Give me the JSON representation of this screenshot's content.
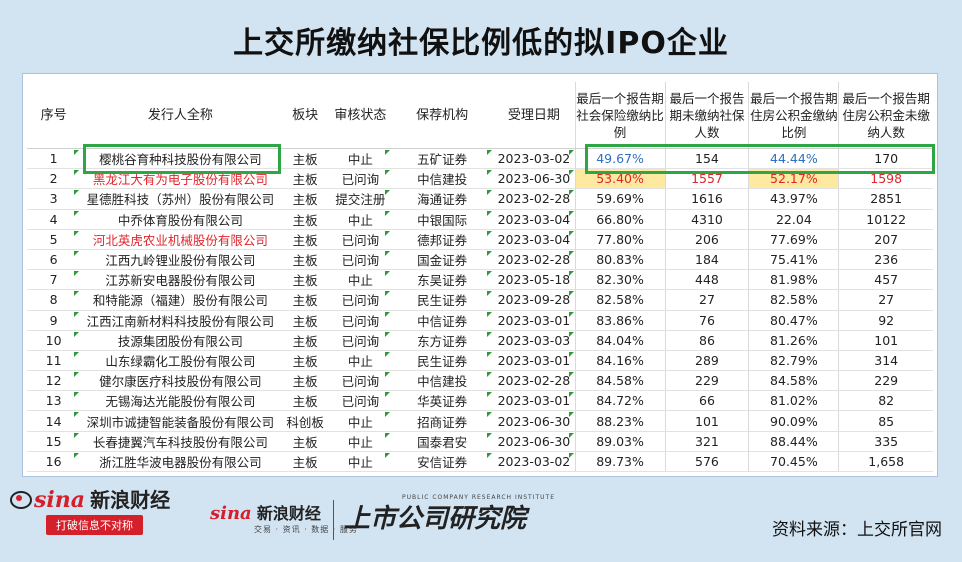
{
  "title": "上交所缴纳社保比例低的拟IPO企业",
  "table": {
    "headers": {
      "no": "序号",
      "issuer": "发行人全称",
      "board": "板块",
      "status": "审核状态",
      "sponsor": "保荐机构",
      "date": "受理日期",
      "ss_ratio": "最后一个报告期社会保险缴纳比例",
      "ss_unpaid": "最后一个报告期未缴纳社保人数",
      "hf_ratio": "最后一个报告期住房公积金缴纳比例",
      "hf_unpaid": "最后一个报告期住房公积金未缴纳人数"
    },
    "rows": [
      {
        "no": "1",
        "issuer": "樱桃谷育种科技股份有限公司",
        "board": "主板",
        "status": "中止",
        "sponsor": "五矿证券",
        "date": "2023-03-02",
        "ss_ratio": "49.67%",
        "ss_unpaid": "154",
        "hf_ratio": "44.44%",
        "hf_unpaid": "170"
      },
      {
        "no": "2",
        "issuer": "黑龙江大有为电子股份有限公司",
        "board": "主板",
        "status": "已问询",
        "sponsor": "中信建投",
        "date": "2023-06-30",
        "ss_ratio": "53.40%",
        "ss_unpaid": "1557",
        "hf_ratio": "52.17%",
        "hf_unpaid": "1598"
      },
      {
        "no": "3",
        "issuer": "星德胜科技（苏州）股份有限公司",
        "board": "主板",
        "status": "提交注册",
        "sponsor": "海通证券",
        "date": "2023-02-28",
        "ss_ratio": "59.69%",
        "ss_unpaid": "1616",
        "hf_ratio": "43.97%",
        "hf_unpaid": "2851"
      },
      {
        "no": "4",
        "issuer": "中乔体育股份有限公司",
        "board": "主板",
        "status": "中止",
        "sponsor": "中银国际",
        "date": "2023-03-04",
        "ss_ratio": "66.80%",
        "ss_unpaid": "4310",
        "hf_ratio": "22.04",
        "hf_unpaid": "10122"
      },
      {
        "no": "5",
        "issuer": "河北英虎农业机械股份有限公司",
        "board": "主板",
        "status": "已问询",
        "sponsor": "德邦证券",
        "date": "2023-03-04",
        "ss_ratio": "77.80%",
        "ss_unpaid": "206",
        "hf_ratio": "77.69%",
        "hf_unpaid": "207"
      },
      {
        "no": "6",
        "issuer": "江西九岭锂业股份有限公司",
        "board": "主板",
        "status": "已问询",
        "sponsor": "国金证券",
        "date": "2023-02-28",
        "ss_ratio": "80.83%",
        "ss_unpaid": "184",
        "hf_ratio": "75.41%",
        "hf_unpaid": "236"
      },
      {
        "no": "7",
        "issuer": "江苏新安电器股份有限公司",
        "board": "主板",
        "status": "中止",
        "sponsor": "东吴证券",
        "date": "2023-05-18",
        "ss_ratio": "82.30%",
        "ss_unpaid": "448",
        "hf_ratio": "81.98%",
        "hf_unpaid": "457"
      },
      {
        "no": "8",
        "issuer": "和特能源（福建）股份有限公司",
        "board": "主板",
        "status": "已问询",
        "sponsor": "民生证券",
        "date": "2023-09-28",
        "ss_ratio": "82.58%",
        "ss_unpaid": "27",
        "hf_ratio": "82.58%",
        "hf_unpaid": "27"
      },
      {
        "no": "9",
        "issuer": "江西江南新材料科技股份有限公司",
        "board": "主板",
        "status": "已问询",
        "sponsor": "中信证券",
        "date": "2023-03-01",
        "ss_ratio": "83.86%",
        "ss_unpaid": "76",
        "hf_ratio": "80.47%",
        "hf_unpaid": "92"
      },
      {
        "no": "10",
        "issuer": "技源集团股份有限公司",
        "board": "主板",
        "status": "已问询",
        "sponsor": "东方证券",
        "date": "2023-03-03",
        "ss_ratio": "84.04%",
        "ss_unpaid": "86",
        "hf_ratio": "81.26%",
        "hf_unpaid": "101"
      },
      {
        "no": "11",
        "issuer": "山东绿霸化工股份有限公司",
        "board": "主板",
        "status": "中止",
        "sponsor": "民生证券",
        "date": "2023-03-01",
        "ss_ratio": "84.16%",
        "ss_unpaid": "289",
        "hf_ratio": "82.79%",
        "hf_unpaid": "314"
      },
      {
        "no": "12",
        "issuer": "健尔康医疗科技股份有限公司",
        "board": "主板",
        "status": "已问询",
        "sponsor": "中信建投",
        "date": "2023-02-28",
        "ss_ratio": "84.58%",
        "ss_unpaid": "229",
        "hf_ratio": "84.58%",
        "hf_unpaid": "229"
      },
      {
        "no": "13",
        "issuer": "无锡海达光能股份有限公司",
        "board": "主板",
        "status": "已问询",
        "sponsor": "华英证券",
        "date": "2023-03-01",
        "ss_ratio": "84.72%",
        "ss_unpaid": "66",
        "hf_ratio": "81.02%",
        "hf_unpaid": "82"
      },
      {
        "no": "14",
        "issuer": "深圳市诚捷智能装备股份有限公司",
        "board": "科创板",
        "status": "中止",
        "sponsor": "招商证券",
        "date": "2023-06-30",
        "ss_ratio": "88.23%",
        "ss_unpaid": "101",
        "hf_ratio": "90.09%",
        "hf_unpaid": "85"
      },
      {
        "no": "15",
        "issuer": "长春捷翼汽车科技股份有限公司",
        "board": "主板",
        "status": "中止",
        "sponsor": "国泰君安",
        "date": "2023-06-30",
        "ss_ratio": "89.03%",
        "ss_unpaid": "321",
        "hf_ratio": "88.44%",
        "hf_unpaid": "335"
      },
      {
        "no": "16",
        "issuer": "浙江胜华波电器股份有限公司",
        "board": "主板",
        "status": "中止",
        "sponsor": "安信证券",
        "date": "2023-03-02",
        "ss_ratio": "89.73%",
        "ss_unpaid": "576",
        "hf_ratio": "70.45%",
        "hf_unpaid": "1,658"
      }
    ]
  },
  "footer": {
    "sina_logo": "sina",
    "sina_finance": "新浪财经",
    "slogan": "打破信息不对称",
    "mid_logo": "sina",
    "mid_finance": "新浪财经",
    "mid_sub": "交易 · 资讯 · 数据 · 服务",
    "institute_name": "上市公司研究院",
    "institute_sub": "PUBLIC COMPANY RESEARCH INSTITUTE",
    "source": "资料来源：上交所官网"
  },
  "colors": {
    "background": "#d2e4f2",
    "highlight_box": "#2ea645",
    "alert_red": "#e0262c",
    "value_blue": "#2f6fc4",
    "highlight_yellow": "#fde9a0",
    "brand_red": "#d4202a"
  }
}
